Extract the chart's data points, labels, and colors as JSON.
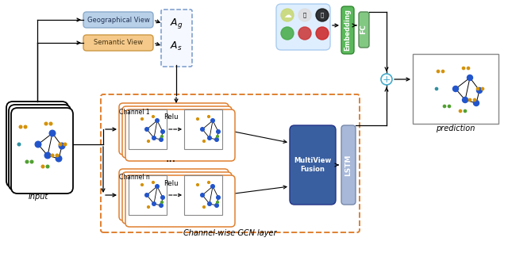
{
  "bg_color": "#ffffff",
  "geo_view_color": "#b8d0e8",
  "sem_view_color": "#f5c98a",
  "embedding_color": "#5cb85c",
  "fc_color": "#82c882",
  "lstm_color": "#a8b8d8",
  "mvf_color": "#3a5fa0",
  "channel_border_color": "#e08030",
  "geo_text": "Geographical View",
  "sem_text": "Semantic View",
  "embedding_text": "Embedding",
  "fc_text": "FC",
  "lstm_text": "LSTM",
  "mvf_text": "MultiView\nFusion",
  "relu_text": "Relu",
  "channel1_text": "Channel 1",
  "channeln_text": "Channel n",
  "input_text": "Input",
  "prediction_text": "prediction",
  "channel_wise_text": "Channel-wise GCN layer",
  "ag_text": "$\\mathit{A}_g$",
  "as_text": "$\\mathit{A}_s$"
}
